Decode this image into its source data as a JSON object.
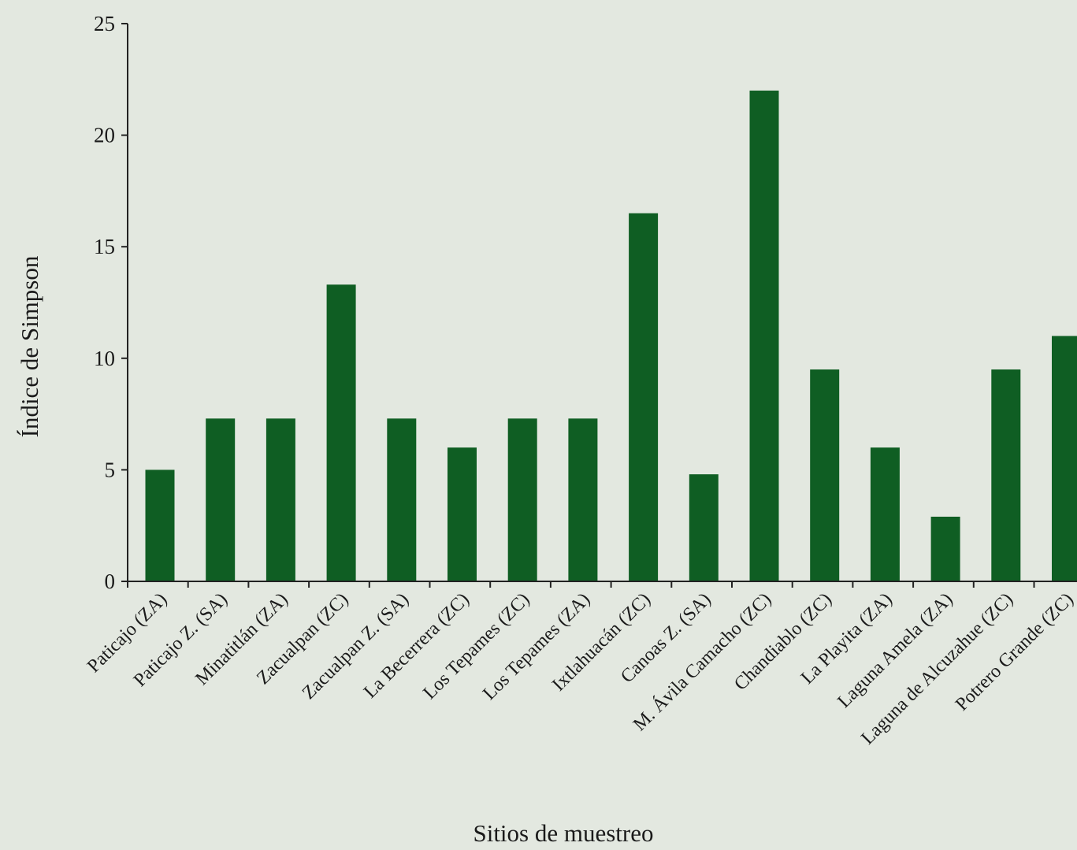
{
  "chart_data": {
    "type": "bar",
    "title": "",
    "xlabel": "Sitios de muestreo",
    "ylabel": "Índice de Simpson",
    "ylim": [
      0,
      25
    ],
    "yticks": [
      0,
      5,
      10,
      15,
      20,
      25
    ],
    "grid": false,
    "bar_color": "#0f5e23",
    "categories": [
      "Paticajo (ZA)",
      "Paticajo Z. (SA)",
      "Minatitlán (ZA)",
      "Zacualpan (ZC)",
      "Zacualpan Z. (SA)",
      "La Becerrera (ZC)",
      "Los Tepames (ZC)",
      "Los Tepames (ZA)",
      "Ixtlahuacán (ZC)",
      "Canoas Z. (SA)",
      "M. Ávila Camacho (ZC)",
      "Chandiablo (ZC)",
      "La Playita (ZA)",
      "Laguna Amela (ZA)",
      "Laguna de Alcuzahue (ZC)",
      "Potrero Grande (ZC)"
    ],
    "values": [
      5.0,
      7.3,
      7.3,
      13.3,
      7.3,
      6.0,
      7.3,
      7.3,
      16.5,
      4.8,
      22.0,
      9.5,
      6.0,
      2.9,
      9.5,
      11.0
    ]
  }
}
